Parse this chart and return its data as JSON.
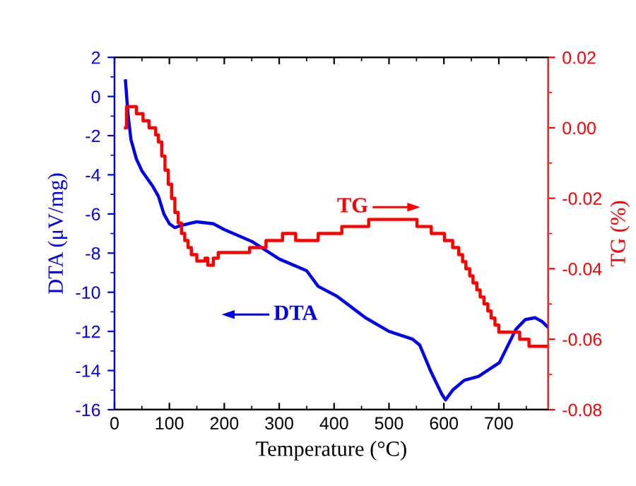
{
  "chart_data": {
    "type": "line",
    "xlabel": "Temperature (°C)",
    "ylabel": "DTA (μV/mg)",
    "y2label": "TG (%)",
    "xlim": [
      0,
      790
    ],
    "xticks": [
      0,
      100,
      200,
      300,
      400,
      500,
      600,
      700
    ],
    "ylim": [
      -16,
      2
    ],
    "yticks": [
      -16,
      -14,
      -12,
      -10,
      -8,
      -6,
      -4,
      -2,
      0,
      2
    ],
    "y2lim": [
      -0.08,
      0.02
    ],
    "y2ticks": [
      {
        "value": -0.08,
        "label": "-0.08"
      },
      {
        "value": -0.06,
        "label": "-0.06"
      },
      {
        "value": -0.04,
        "label": "-0.04"
      },
      {
        "value": -0.02,
        "label": "-0.02"
      },
      {
        "value": 0,
        "label": "0.00"
      },
      {
        "value": 0.02,
        "label": "0.02"
      }
    ],
    "grid": false,
    "legend": false,
    "marker": "none",
    "line_style": "solid",
    "series": [
      {
        "color": "#0000ee",
        "x": [
          20,
          25,
          30,
          40,
          50,
          60,
          70,
          80,
          90,
          100,
          110,
          120,
          150,
          180,
          200,
          250,
          300,
          350,
          371,
          405,
          457,
          500,
          543,
          556,
          577,
          596,
          603,
          616,
          637,
          663,
          701,
          731,
          748,
          766,
          779,
          790
        ],
        "values": [
          0.8,
          -1,
          -2.2,
          -3.2,
          -3.8,
          -4.2,
          -4.6,
          -5.1,
          -6.0,
          -6.5,
          -6.7,
          -6.6,
          -6.4,
          -6.5,
          -6.8,
          -7.4,
          -8.3,
          -8.9,
          -9.7,
          -10.2,
          -11.3,
          -12.0,
          -12.4,
          -12.7,
          -14.1,
          -15.2,
          -15.5,
          -15.0,
          -14.5,
          -14.3,
          -13.6,
          -11.9,
          -11.4,
          -11.3,
          -11.5,
          -11.8
        ]
      },
      {
        "type": "step",
        "axis": "y2",
        "color": "#ff0000",
        "x": [
          20,
          22,
          40,
          52,
          63,
          75,
          80,
          86,
          92,
          98,
          104,
          110,
          116,
          122,
          128,
          134,
          140,
          150,
          165,
          170,
          180,
          189,
          246,
          276,
          306,
          330,
          371,
          414,
          463,
          551,
          577,
          601,
          616,
          627,
          634,
          640,
          647,
          653,
          660,
          666,
          673,
          680,
          686,
          693,
          700,
          706,
          738,
          755,
          790
        ],
        "values": [
          0.0,
          0.006,
          0.004,
          0.002,
          0.0,
          -0.002,
          -0.004,
          -0.008,
          -0.012,
          -0.016,
          -0.02,
          -0.024,
          -0.027,
          -0.03,
          -0.032,
          -0.034,
          -0.036,
          -0.0378,
          -0.037,
          -0.039,
          -0.037,
          -0.0354,
          -0.034,
          -0.032,
          -0.03,
          -0.032,
          -0.03,
          -0.028,
          -0.026,
          -0.028,
          -0.03,
          -0.032,
          -0.034,
          -0.036,
          -0.038,
          -0.04,
          -0.042,
          -0.044,
          -0.046,
          -0.048,
          -0.05,
          -0.052,
          -0.054,
          -0.056,
          -0.058,
          -0.058,
          -0.06,
          -0.062,
          -0.062
        ]
      }
    ],
    "annotations": [
      "DTA",
      "TG"
    ]
  }
}
